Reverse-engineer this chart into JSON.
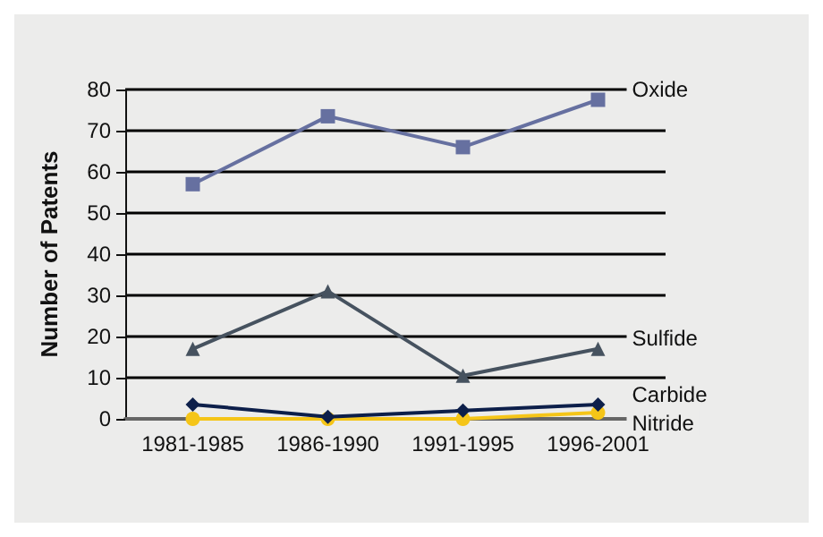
{
  "chart_data": {
    "type": "line",
    "ylabel": "Number of Patents",
    "categories": [
      "1981-1985",
      "1986-1990",
      "1991-1995",
      "1996-2001"
    ],
    "series": [
      {
        "name": "Oxide",
        "color": "#6670a0",
        "marker": "square",
        "values": [
          57,
          73.5,
          66,
          77.5
        ]
      },
      {
        "name": "Sulfide",
        "color": "#46525f",
        "marker": "triangle",
        "values": [
          17,
          31,
          10.5,
          17
        ]
      },
      {
        "name": "Carbide",
        "color": "#0d1f4a",
        "marker": "diamond",
        "values": [
          3.5,
          0.5,
          2,
          3.5
        ]
      },
      {
        "name": "Nitride",
        "color": "#f5c518",
        "marker": "circle",
        "values": [
          0,
          0,
          0,
          1.5
        ]
      }
    ],
    "ylim": [
      0,
      80
    ],
    "yticks": [
      0,
      10,
      20,
      30,
      40,
      50,
      60,
      70,
      80
    ],
    "grid": "y",
    "legend": false
  }
}
